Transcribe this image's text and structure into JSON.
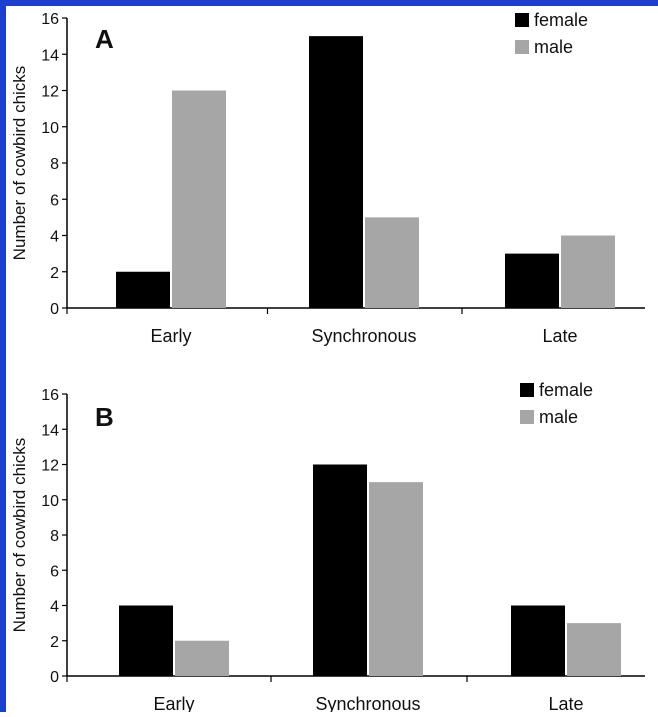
{
  "frame_color": "#1a3fd1",
  "legend": {
    "female_label": "female",
    "male_label": "male"
  },
  "chart_data": [
    {
      "type": "bar",
      "panel_letter": "A",
      "categories": [
        "Early",
        "Synchronous",
        "Late"
      ],
      "series": [
        {
          "name": "female",
          "values": [
            2,
            15,
            3
          ],
          "color": "#000000"
        },
        {
          "name": "male",
          "values": [
            12,
            5,
            4
          ],
          "color": "#a6a6a6"
        }
      ],
      "ylabel": "Number of cowbird chicks",
      "ylim": [
        0,
        16
      ],
      "yticks": [
        0,
        2,
        4,
        6,
        8,
        10,
        12,
        14,
        16
      ],
      "grid": false,
      "legend_position": "top-right"
    },
    {
      "type": "bar",
      "panel_letter": "B",
      "categories": [
        "Early",
        "Synchronous",
        "Late"
      ],
      "series": [
        {
          "name": "female",
          "values": [
            4,
            12,
            4
          ],
          "color": "#000000"
        },
        {
          "name": "male",
          "values": [
            2,
            11,
            3
          ],
          "color": "#a6a6a6"
        }
      ],
      "ylabel": "Number of cowbird chicks",
      "ylim": [
        0,
        16
      ],
      "yticks": [
        0,
        2,
        4,
        6,
        8,
        10,
        12,
        14,
        16
      ],
      "grid": false,
      "legend_position": "top-right"
    }
  ]
}
